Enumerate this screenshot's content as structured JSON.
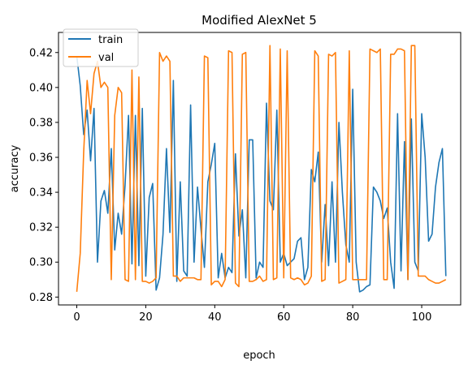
{
  "chart_data": {
    "type": "line",
    "title": "Modified AlexNet 5",
    "xlabel": "epoch",
    "ylabel": "accuracy",
    "xlim": [
      -5.3,
      111.3
    ],
    "ylim": [
      0.2755,
      0.4315
    ],
    "xticks": [
      0,
      20,
      40,
      60,
      80,
      100
    ],
    "xtick_labels": [
      "0",
      "20",
      "40",
      "60",
      "80",
      "100"
    ],
    "yticks": [
      0.28,
      0.3,
      0.32,
      0.34,
      0.36,
      0.38,
      0.4,
      0.42
    ],
    "ytick_labels": [
      "0.28",
      "0.30",
      "0.32",
      "0.34",
      "0.36",
      "0.38",
      "0.40",
      "0.42"
    ],
    "grid": false,
    "legend_position": "top-left",
    "series": [
      {
        "name": "train",
        "color": "#1f77b4",
        "values": [
          0.418,
          0.401,
          0.373,
          0.387,
          0.358,
          0.388,
          0.3,
          0.335,
          0.341,
          0.328,
          0.365,
          0.307,
          0.328,
          0.316,
          0.344,
          0.384,
          0.299,
          0.384,
          0.298,
          0.388,
          0.292,
          0.337,
          0.345,
          0.284,
          0.291,
          0.316,
          0.365,
          0.317,
          0.404,
          0.289,
          0.346,
          0.295,
          0.292,
          0.39,
          0.3,
          0.343,
          0.319,
          0.297,
          0.346,
          0.356,
          0.368,
          0.291,
          0.305,
          0.291,
          0.297,
          0.294,
          0.362,
          0.315,
          0.33,
          0.291,
          0.37,
          0.37,
          0.291,
          0.3,
          0.297,
          0.391,
          0.335,
          0.33,
          0.387,
          0.3,
          0.305,
          0.298,
          0.3,
          0.302,
          0.312,
          0.314,
          0.29,
          0.297,
          0.353,
          0.346,
          0.363,
          0.3,
          0.333,
          0.298,
          0.346,
          0.3,
          0.38,
          0.34,
          0.31,
          0.3,
          0.399,
          0.3,
          0.283,
          0.284,
          0.286,
          0.287,
          0.343,
          0.34,
          0.335,
          0.325,
          0.331,
          0.3,
          0.285,
          0.385,
          0.295,
          0.369,
          0.29,
          0.382,
          0.3,
          0.295,
          0.385,
          0.36,
          0.312,
          0.316,
          0.343,
          0.357,
          0.365,
          0.292
        ]
      },
      {
        "name": "val",
        "color": "#ff7f0e",
        "values": [
          0.283,
          0.305,
          0.363,
          0.404,
          0.385,
          0.408,
          0.415,
          0.4,
          0.403,
          0.4,
          0.29,
          0.384,
          0.4,
          0.397,
          0.29,
          0.289,
          0.41,
          0.29,
          0.406,
          0.289,
          0.289,
          0.288,
          0.289,
          0.291,
          0.42,
          0.415,
          0.418,
          0.415,
          0.292,
          0.292,
          0.289,
          0.291,
          0.291,
          0.291,
          0.291,
          0.29,
          0.29,
          0.418,
          0.417,
          0.287,
          0.289,
          0.289,
          0.286,
          0.29,
          0.421,
          0.42,
          0.288,
          0.286,
          0.419,
          0.42,
          0.289,
          0.289,
          0.29,
          0.292,
          0.289,
          0.29,
          0.424,
          0.29,
          0.291,
          0.422,
          0.291,
          0.421,
          0.291,
          0.29,
          0.291,
          0.29,
          0.287,
          0.288,
          0.292,
          0.421,
          0.418,
          0.289,
          0.29,
          0.419,
          0.418,
          0.42,
          0.288,
          0.289,
          0.29,
          0.421,
          0.29,
          0.29,
          0.29,
          0.29,
          0.29,
          0.422,
          0.421,
          0.42,
          0.422,
          0.29,
          0.29,
          0.419,
          0.419,
          0.422,
          0.422,
          0.421,
          0.29,
          0.424,
          0.424,
          0.292,
          0.292,
          0.292,
          0.29,
          0.289,
          0.288,
          0.288,
          0.289,
          0.29
        ]
      }
    ]
  }
}
